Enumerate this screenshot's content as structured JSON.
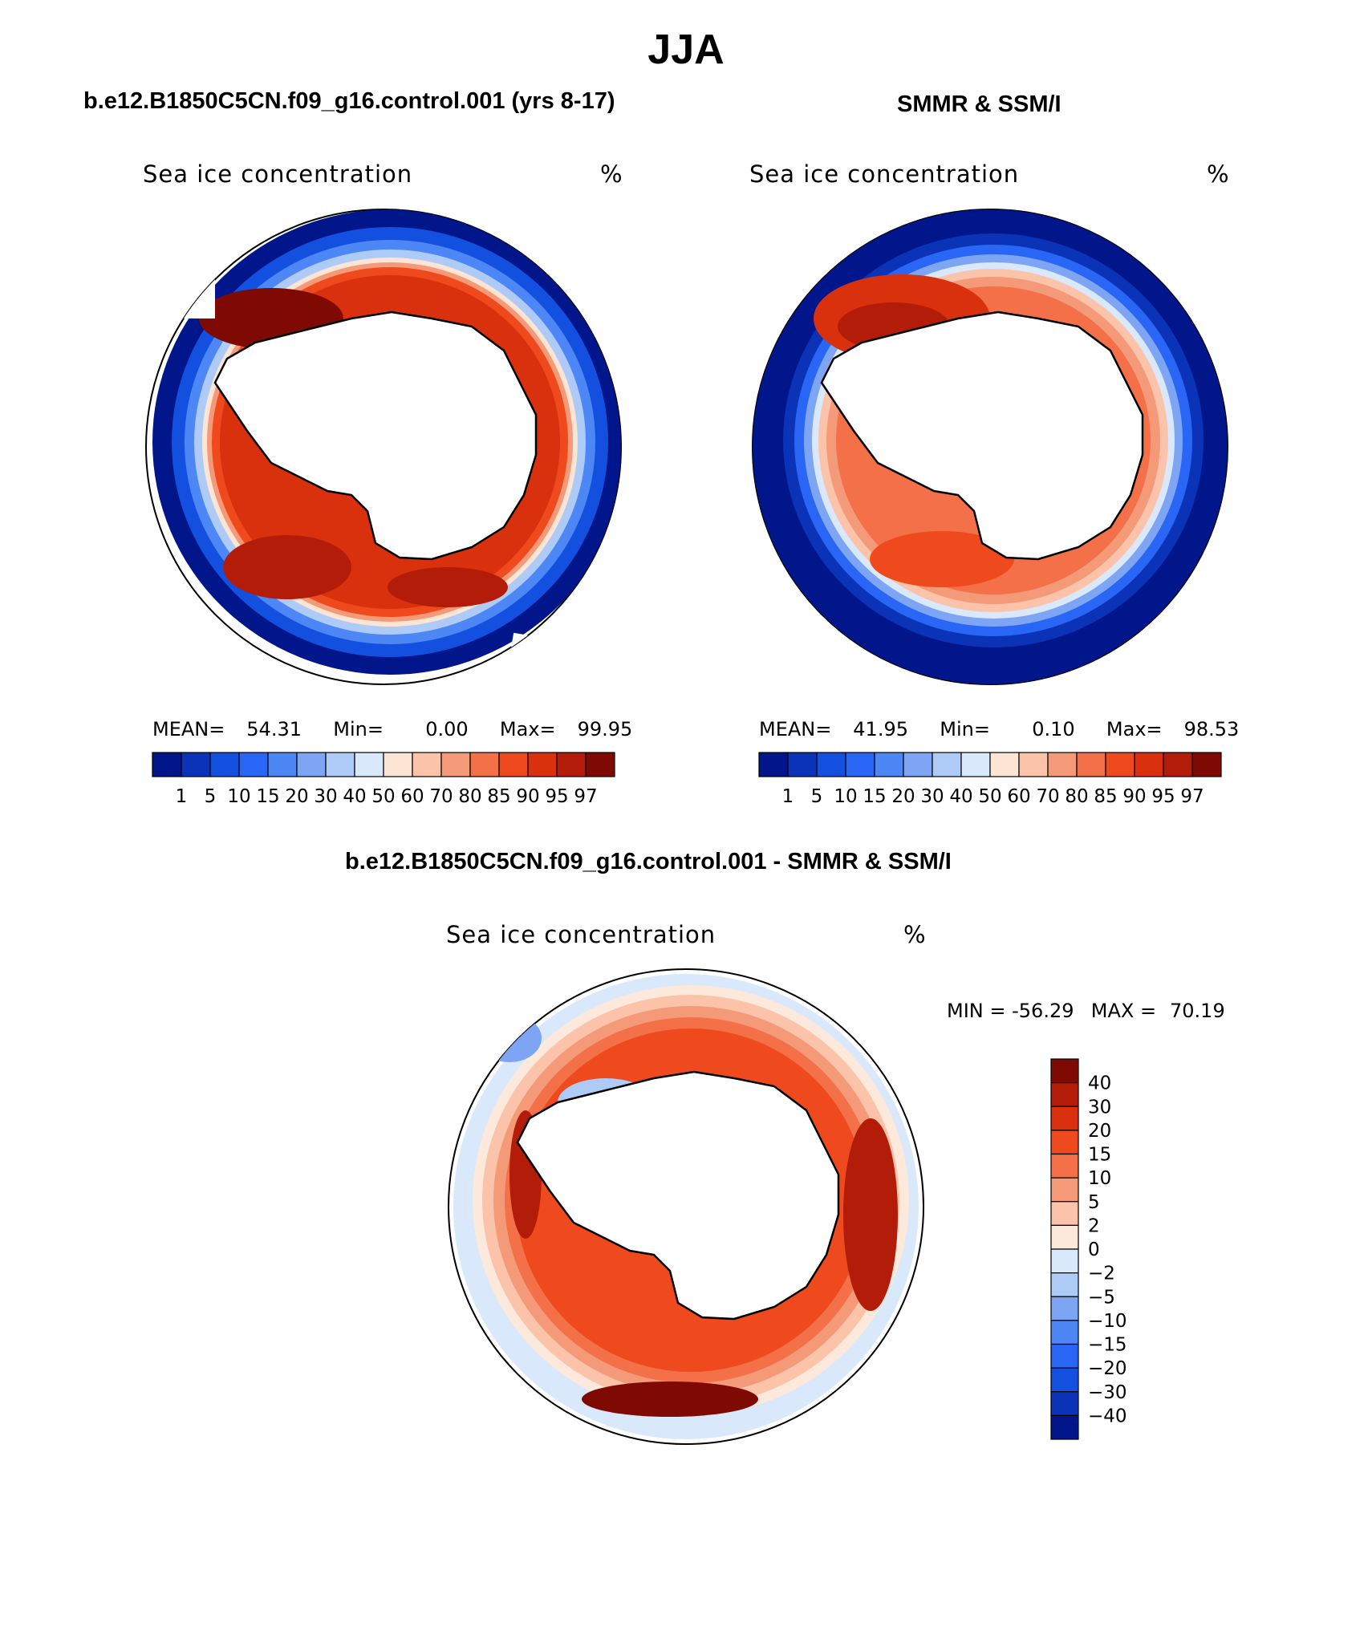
{
  "figure": {
    "title": "JJA",
    "variable_label": "Sea ice concentration",
    "units": "%"
  },
  "panels": [
    {
      "id": "model",
      "title": "b.e12.B1850C5CN.f09_g16.control.001 (yrs 8-17)",
      "stats": {
        "mean_label": "MEAN=",
        "mean": "54.31",
        "min_label": "Min=",
        "min": "0.00",
        "max_label": "Max=",
        "max": "99.95"
      }
    },
    {
      "id": "obs",
      "title": "SMMR & SSM/I",
      "stats": {
        "mean_label": "MEAN=",
        "mean": "41.95",
        "min_label": "Min=",
        "min": "0.10",
        "max_label": "Max=",
        "max": "98.53"
      }
    },
    {
      "id": "diff",
      "title": "b.e12.B1850C5CN.f09_g16.control.001 - SMMR & SSM/I",
      "stats": {
        "min_label": "MIN =",
        "min": "-56.29",
        "max_label": "MAX =",
        "max": "70.19"
      }
    }
  ],
  "colorbar_conc": {
    "labels": [
      "1",
      "5",
      "10",
      "15",
      "20",
      "30",
      "40",
      "50",
      "60",
      "70",
      "80",
      "85",
      "90",
      "95",
      "97"
    ],
    "colors": [
      "#00168a",
      "#0a33b8",
      "#1450e0",
      "#2a66f5",
      "#4d86f5",
      "#7ea5f4",
      "#aecbf7",
      "#dae8fb",
      "#fde5d6",
      "#fbc4aa",
      "#f59a79",
      "#f37048",
      "#ee4a1d",
      "#d9300e",
      "#b31c08",
      "#7f0a04"
    ]
  },
  "colorbar_diff": {
    "labels": [
      "40",
      "30",
      "20",
      "15",
      "10",
      "5",
      "2",
      "0",
      "−2",
      "−5",
      "−10",
      "−15",
      "−20",
      "−30",
      "−40"
    ],
    "colors": [
      "#7f0a04",
      "#b31c08",
      "#d9300e",
      "#ee4a1d",
      "#f37048",
      "#f59a79",
      "#fbc4aa",
      "#fde9dc",
      "#dae8fb",
      "#aecbf7",
      "#7ea5f4",
      "#4d86f5",
      "#2a66f5",
      "#1450e0",
      "#0a33b8",
      "#00168a"
    ]
  },
  "chart_data": {
    "type": "polar-stereographic map (Southern Hemisphere)",
    "season": "JJA",
    "variable": "Sea ice concentration (%)",
    "panels": [
      {
        "name": "b.e12.B1850C5CN.f09_g16.control.001 (yrs 8-17)",
        "mean": 54.31,
        "min": 0.0,
        "max": 99.95,
        "contour_levels": [
          1,
          5,
          10,
          15,
          20,
          30,
          40,
          50,
          60,
          70,
          80,
          85,
          90,
          95,
          97
        ]
      },
      {
        "name": "SMMR & SSM/I",
        "mean": 41.95,
        "min": 0.1,
        "max": 98.53,
        "contour_levels": [
          1,
          5,
          10,
          15,
          20,
          30,
          40,
          50,
          60,
          70,
          80,
          85,
          90,
          95,
          97
        ]
      },
      {
        "name": "b.e12.B1850C5CN.f09_g16.control.001 - SMMR & SSM/I",
        "min": -56.29,
        "max": 70.19,
        "contour_levels": [
          -40,
          -30,
          -20,
          -15,
          -10,
          -5,
          -2,
          0,
          2,
          5,
          10,
          15,
          20,
          30,
          40
        ]
      }
    ]
  }
}
